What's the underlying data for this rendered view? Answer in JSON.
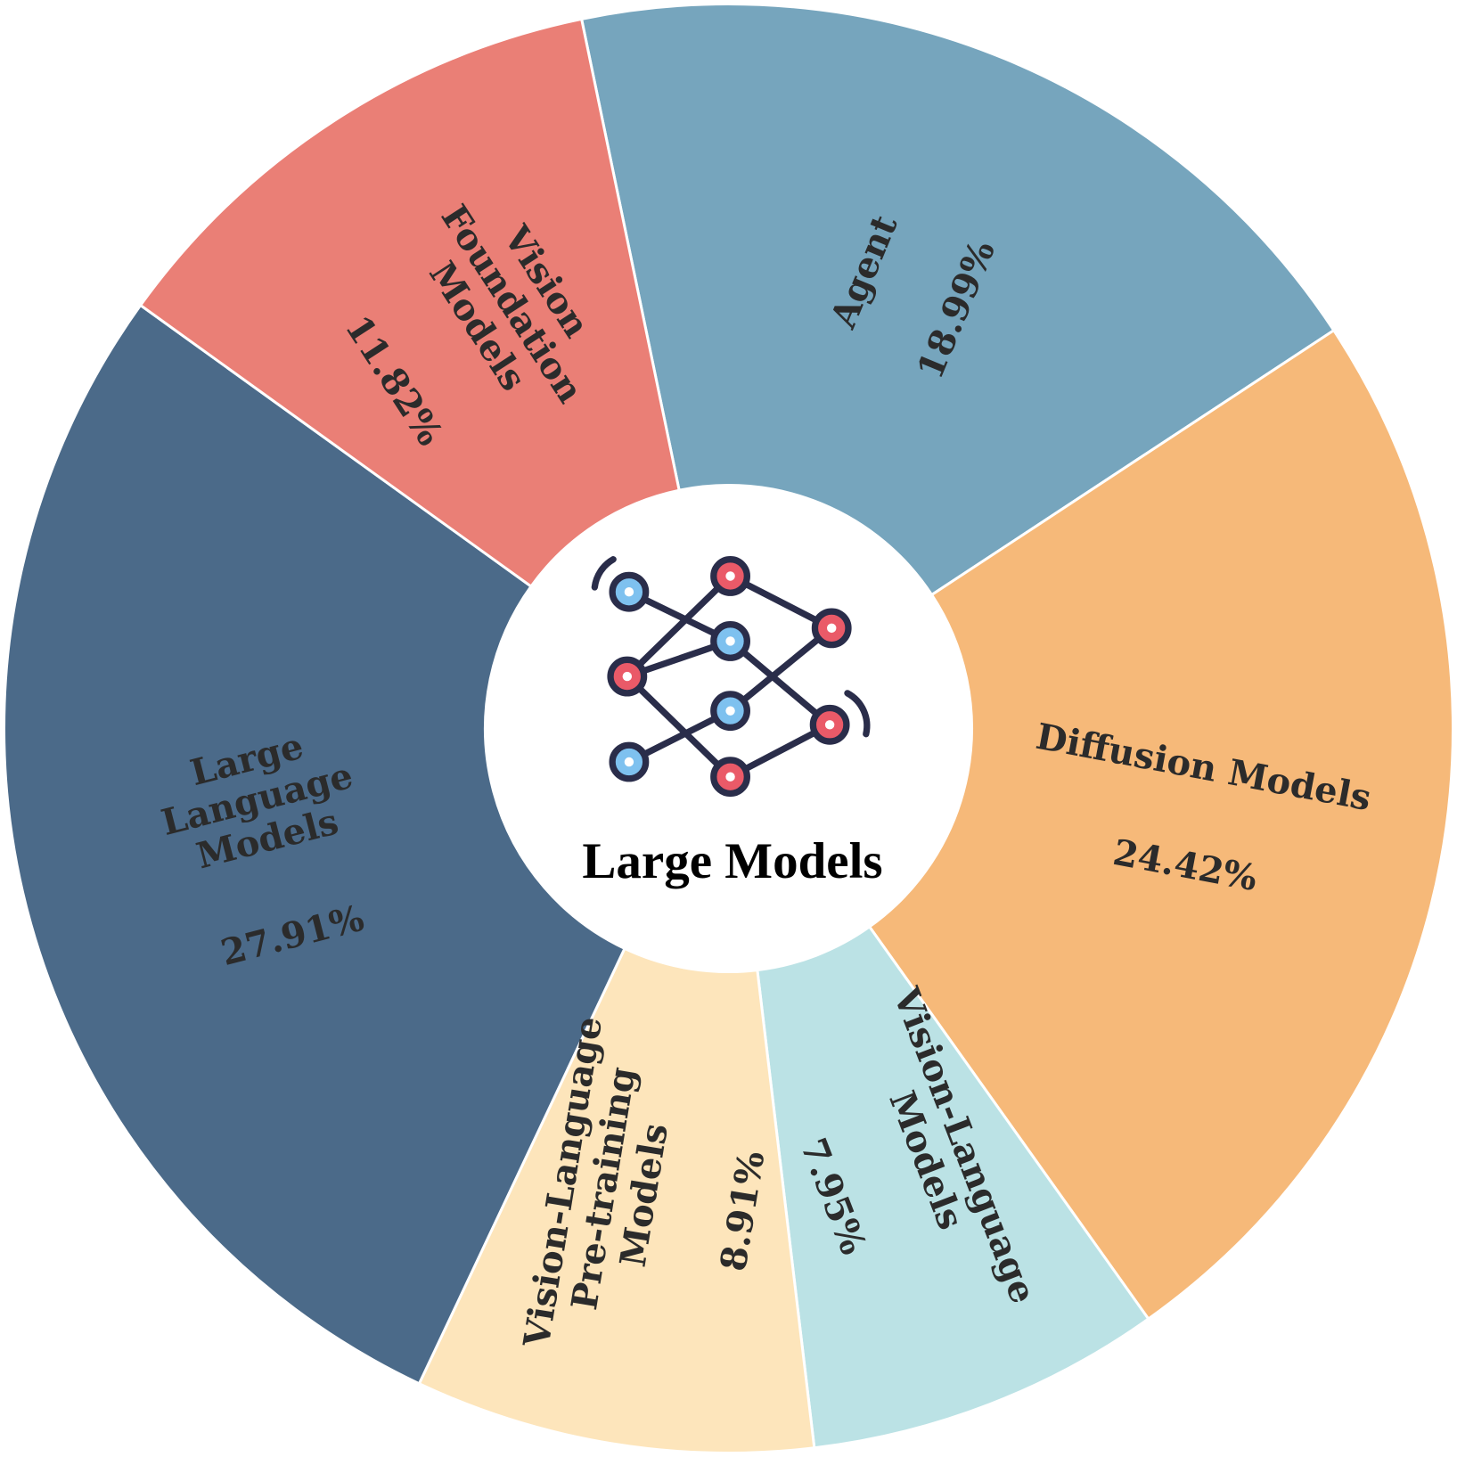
{
  "chart_data": {
    "type": "donut",
    "title": "Large Models",
    "categories": [
      "Agent",
      "Diffusion Models",
      "Vision-Language\nModels",
      "Vision-Language\nPre-training\nModels",
      "Large\nLanguage\nModels",
      "Vision\nFoundation\nModels"
    ],
    "values": [
      18.99,
      24.42,
      7.95,
      8.91,
      27.91,
      11.82
    ],
    "value_labels": [
      "18.99%",
      "24.42%",
      "7.95%",
      "8.91%",
      "27.91%",
      "11.82%"
    ],
    "colors": [
      "#76a5bd",
      "#f6b979",
      "#bbe2e5",
      "#fde5bb",
      "#4b6a89",
      "#ea7f76"
    ]
  }
}
